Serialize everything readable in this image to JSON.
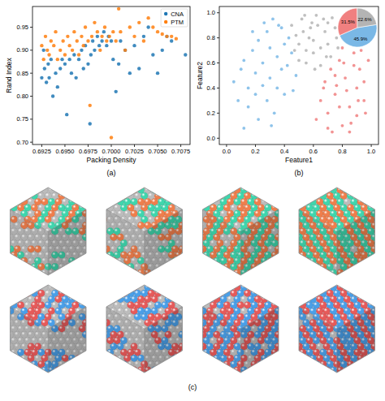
{
  "chart_data": [
    {
      "type": "scatter",
      "caption": "(a)",
      "xlabel": "Packing Density",
      "ylabel": "Rand Index",
      "xlim": [
        0.6915,
        0.7085
      ],
      "ylim": [
        0.695,
        0.995
      ],
      "xticks": [
        0.6925,
        {
          "value": 0.695,
          "label": "0.6950"
        },
        0.6975,
        {
          "value": 0.7,
          "label": "0.7000"
        },
        0.7025,
        {
          "value": 0.705,
          "label": "0.7050"
        },
        0.7075
      ],
      "yticks": [
        {
          "value": 0.7,
          "label": "0.70"
        },
        0.75,
        {
          "value": 0.8,
          "label": "0.80"
        },
        0.85,
        {
          "value": 0.9,
          "label": "0.90"
        },
        0.95
      ],
      "legend": "upper right",
      "series": [
        {
          "name": "CNA",
          "color": "#1f77b4",
          "marker": "circle",
          "x": [
            0.6925,
            0.6927,
            0.6928,
            0.693,
            0.6932,
            0.6933,
            0.6935,
            0.6937,
            0.694,
            0.6942,
            0.6945,
            0.6947,
            0.695,
            0.6952,
            0.6955,
            0.6957,
            0.696,
            0.6962,
            0.6965,
            0.6968,
            0.697,
            0.6972,
            0.6975,
            0.6977,
            0.6978,
            0.698,
            0.6982,
            0.6985,
            0.6987,
            0.699,
            0.6992,
            0.6995,
            0.6997,
            0.7,
            0.7002,
            0.7005,
            0.7008,
            0.701,
            0.7015,
            0.702,
            0.7025,
            0.703,
            0.7035,
            0.704,
            0.7045,
            0.705,
            0.7055,
            0.706,
            0.7065,
            0.708
          ],
          "values": [
            0.84,
            0.9,
            0.86,
            0.83,
            0.87,
            0.84,
            0.88,
            0.8,
            0.85,
            0.82,
            0.86,
            0.88,
            0.87,
            0.76,
            0.88,
            0.85,
            0.89,
            0.84,
            0.88,
            0.9,
            0.86,
            0.91,
            0.87,
            0.74,
            0.89,
            0.92,
            0.9,
            0.93,
            0.91,
            0.92,
            0.94,
            0.91,
            0.93,
            0.92,
            0.88,
            0.81,
            0.87,
            0.92,
            0.9,
            0.85,
            0.91,
            0.86,
            0.93,
            0.95,
            0.89,
            0.85,
            0.9,
            0.93,
            0.92,
            0.89
          ]
        },
        {
          "name": "PTM",
          "color": "#ff7f0e",
          "marker": "circle",
          "x": [
            0.6925,
            0.6927,
            0.6929,
            0.6931,
            0.6933,
            0.6935,
            0.6938,
            0.694,
            0.6942,
            0.6945,
            0.6948,
            0.695,
            0.6953,
            0.6955,
            0.6958,
            0.696,
            0.6963,
            0.6965,
            0.6968,
            0.697,
            0.6972,
            0.6975,
            0.6977,
            0.6979,
            0.6982,
            0.6985,
            0.6988,
            0.699,
            0.6993,
            0.6995,
            0.6998,
            0.7,
            0.7002,
            0.7005,
            0.7008,
            0.701,
            0.7015,
            0.702,
            0.7025,
            0.703,
            0.7035,
            0.704,
            0.7045,
            0.705,
            0.7055,
            0.706,
            0.7065,
            0.707
          ],
          "values": [
            0.91,
            0.88,
            0.93,
            0.9,
            0.89,
            0.92,
            0.91,
            0.94,
            0.88,
            0.9,
            0.92,
            0.89,
            0.93,
            0.91,
            0.9,
            0.94,
            0.92,
            0.89,
            0.93,
            0.91,
            0.95,
            0.92,
            0.78,
            0.93,
            0.96,
            0.94,
            0.9,
            0.93,
            0.95,
            0.92,
            0.93,
            0.71,
            0.94,
            0.92,
            0.99,
            0.94,
            0.9,
            0.95,
            0.93,
            0.96,
            0.92,
            0.97,
            0.95,
            0.94,
            0.935,
            0.93,
            0.93,
            0.925
          ]
        }
      ]
    },
    {
      "type": "scatter",
      "caption": "(b)",
      "xlabel": "Feature1",
      "ylabel": "Feature2",
      "xlim": [
        -0.05,
        1.05
      ],
      "ylim": [
        -0.05,
        1.05
      ],
      "xticks": [
        {
          "value": 0,
          "label": "0.0"
        },
        0.2,
        0.4,
        0.6,
        0.8,
        {
          "value": 1,
          "label": "1.0"
        }
      ],
      "yticks": [
        {
          "value": 0,
          "label": "0.0"
        },
        0.2,
        0.4,
        0.6,
        0.8,
        {
          "value": 1,
          "label": "1.0"
        }
      ],
      "series": [
        {
          "color": "#7ab8e6",
          "marker": "circle",
          "x": [
            0.05,
            0.08,
            0.1,
            0.12,
            0.15,
            0.18,
            0.2,
            0.22,
            0.25,
            0.28,
            0.3,
            0.32,
            0.35,
            0.38,
            0.4,
            0.42,
            0.45,
            0.48,
            0.15,
            0.2,
            0.25,
            0.3,
            0.35,
            0.4,
            0.28,
            0.33,
            0.22,
            0.38,
            0.43,
            0.18,
            0.26,
            0.36,
            0.12,
            0.46,
            0.31
          ],
          "values": [
            0.45,
            0.3,
            0.55,
            0.62,
            0.4,
            0.7,
            0.52,
            0.78,
            0.6,
            0.85,
            0.72,
            0.95,
            0.65,
            0.88,
            0.75,
            0.58,
            0.68,
            0.5,
            0.25,
            0.35,
            0.42,
            0.48,
            0.4,
            0.35,
            0.3,
            0.2,
            0.15,
            0.55,
            0.8,
            0.85,
            0.92,
            0.9,
            0.08,
            0.38,
            0.1
          ]
        },
        {
          "color": "#b4b4b4",
          "marker": "circle",
          "x": [
            0.45,
            0.48,
            0.5,
            0.52,
            0.55,
            0.58,
            0.6,
            0.62,
            0.65,
            0.68,
            0.7,
            0.72,
            0.75,
            0.76,
            0.5,
            0.55,
            0.6,
            0.65,
            0.7,
            0.53,
            0.63,
            0.73,
            0.57,
            0.67,
            0.47,
            0.77,
            0.61,
            0.69,
            0.59,
            0.54
          ],
          "values": [
            0.9,
            0.82,
            0.75,
            0.95,
            0.7,
            0.88,
            0.78,
            0.98,
            0.72,
            0.85,
            0.92,
            0.65,
            0.88,
            0.8,
            0.62,
            0.6,
            0.68,
            0.58,
            0.75,
            0.85,
            0.9,
            0.96,
            0.8,
            0.95,
            0.7,
            0.72,
            0.55,
            0.65,
            0.92,
            0.98
          ]
        },
        {
          "color": "#f08080",
          "marker": "circle",
          "x": [
            0.62,
            0.65,
            0.68,
            0.7,
            0.72,
            0.75,
            0.78,
            0.8,
            0.82,
            0.85,
            0.88,
            0.9,
            0.92,
            0.95,
            0.98,
            0.7,
            0.75,
            0.8,
            0.85,
            0.9,
            0.95,
            0.78,
            0.83,
            0.88,
            0.93,
            0.73,
            0.67,
            0.86,
            0.96,
            0.81,
            0.76,
            0.91
          ],
          "values": [
            0.15,
            0.3,
            0.45,
            0.2,
            0.55,
            0.35,
            0.62,
            0.1,
            0.48,
            0.25,
            0.68,
            0.4,
            0.55,
            0.3,
            0.62,
            0.08,
            0.5,
            0.72,
            0.05,
            0.18,
            0.45,
            0.25,
            0.38,
            0.58,
            0.7,
            0.05,
            0.4,
            0.12,
            0.2,
            0.6,
            0.42,
            0.3
          ]
        }
      ]
    },
    {
      "type": "pie",
      "values": [
        45.9,
        31.5,
        22.6
      ],
      "value_labels": [
        "45.9%",
        "31.5%",
        "22.6%"
      ],
      "colors": [
        "#7ab8e6",
        "#f08080",
        "#b4b4b4"
      ],
      "data_labels": true
    },
    {
      "type": "render",
      "caption": "(c)"
    }
  ]
}
